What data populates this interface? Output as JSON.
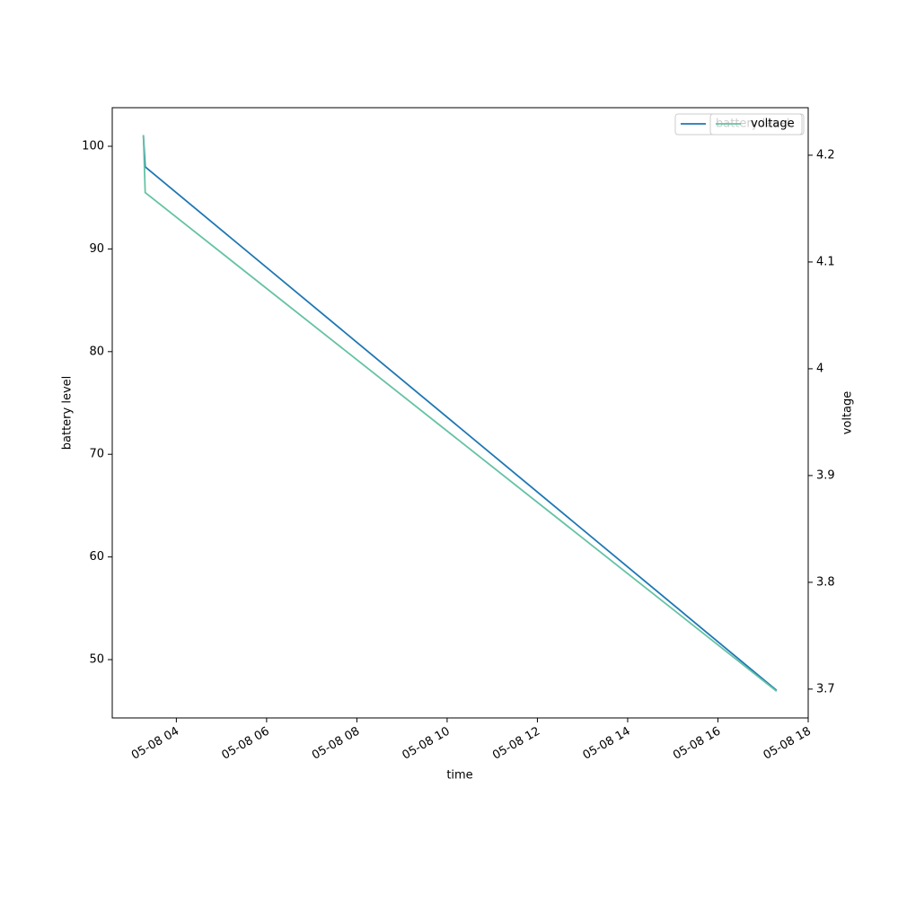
{
  "chart_data": {
    "type": "line",
    "xlabel": "time",
    "ylabel": "battery level",
    "y2label": "voltage",
    "x": [
      3.27,
      3.31,
      17.3
    ],
    "xlim": [
      2.58,
      18
    ],
    "xticks": [
      {
        "value": 4,
        "label": "05-08 04"
      },
      {
        "value": 6,
        "label": "05-08 06"
      },
      {
        "value": 8,
        "label": "05-08 08"
      },
      {
        "value": 10,
        "label": "05-08 10"
      },
      {
        "value": 12,
        "label": "05-08 12"
      },
      {
        "value": 14,
        "label": "05-08 14"
      },
      {
        "value": 16,
        "label": "05-08 16"
      },
      {
        "value": 18,
        "label": "05-08 18"
      }
    ],
    "ylim": [
      44.32,
      103.76
    ],
    "yticks": [
      50,
      60,
      70,
      80,
      90,
      100
    ],
    "y2lim": [
      3.673,
      4.2445
    ],
    "y2ticks": [
      3.7,
      3.8,
      3.9,
      4.0,
      4.1,
      4.2
    ],
    "legend": "upper right",
    "series": [
      {
        "name": "battery level",
        "color": "#1f77b4",
        "values": [
          101,
          98,
          47
        ]
      },
      {
        "name": "voltage",
        "color": "#66c2a5",
        "axis": "y2",
        "values": [
          4.219,
          4.165,
          3.698
        ]
      }
    ]
  }
}
